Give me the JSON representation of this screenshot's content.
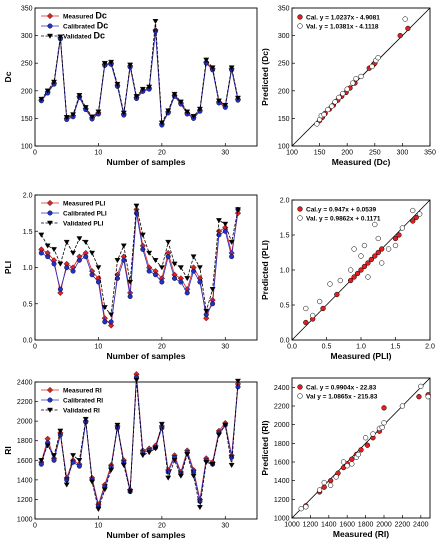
{
  "chart_data": [
    {
      "id": "dc-line",
      "type": "line",
      "xlabel": "Number of samples",
      "ylabel": "Dc",
      "xlim": [
        0,
        35
      ],
      "ylim": [
        100,
        350
      ],
      "xticks": [
        0,
        10,
        20,
        30
      ],
      "yticks": [
        100,
        150,
        200,
        250,
        300,
        350
      ],
      "legend": "top-left",
      "x": [
        1,
        2,
        3,
        4,
        5,
        6,
        7,
        8,
        9,
        10,
        11,
        12,
        13,
        14,
        15,
        16,
        17,
        18,
        19,
        20,
        21,
        22,
        23,
        24,
        25,
        26,
        27,
        28,
        29,
        30,
        31,
        32
      ],
      "series": [
        {
          "name": "Measured",
          "name_suffix": "Dc",
          "color": "#e02020",
          "marker": "diamond",
          "values": [
            183,
            198,
            214,
            296,
            150,
            155,
            190,
            168,
            151,
            160,
            248,
            250,
            210,
            158,
            245,
            188,
            201,
            205,
            310,
            140,
            162,
            192,
            178,
            160,
            152,
            165,
            252,
            240,
            180,
            172,
            240,
            185
          ]
        },
        {
          "name": "Calibrated",
          "name_suffix": "Dc",
          "color": "#2030c8",
          "marker": "circle",
          "values": [
            182,
            196,
            212,
            294,
            148,
            153,
            188,
            166,
            149,
            158,
            246,
            248,
            208,
            156,
            243,
            186,
            199,
            203,
            308,
            138,
            160,
            190,
            176,
            158,
            150,
            163,
            250,
            238,
            178,
            170,
            238,
            183
          ]
        },
        {
          "name": "Validated",
          "name_suffix": "Dc",
          "color": "#000000",
          "marker": "triangle",
          "dash": true,
          "values": [
            185,
            200,
            216,
            298,
            152,
            157,
            192,
            170,
            153,
            162,
            250,
            252,
            212,
            160,
            247,
            190,
            203,
            207,
            326,
            142,
            164,
            194,
            180,
            162,
            154,
            167,
            256,
            242,
            182,
            174,
            242,
            187
          ]
        }
      ]
    },
    {
      "id": "dc-scatter",
      "type": "scatter",
      "xlabel": "Measured (Dc)",
      "ylabel": "Predicted (Dc)",
      "xlim": [
        100,
        350
      ],
      "ylim": [
        100,
        350
      ],
      "xticks": [
        100,
        150,
        200,
        250,
        300,
        350
      ],
      "yticks": [
        100,
        150,
        200,
        250,
        300,
        350
      ],
      "legend": "top-left",
      "series": [
        {
          "name": "Cal. y = 1.0237x - 4.9081",
          "fill": "#e02020",
          "x": [
            150,
            155,
            160,
            168,
            175,
            183,
            190,
            198,
            205,
            214,
            240,
            248,
            250,
            296,
            310
          ],
          "y": [
            146,
            152,
            159,
            167,
            174,
            183,
            190,
            197,
            205,
            214,
            241,
            248,
            250,
            300,
            313
          ]
        },
        {
          "name": "Val. y = 1.0381x - 4.1118",
          "fill": "#ffffff",
          "x": [
            145,
            150,
            153,
            158,
            165,
            172,
            178,
            185,
            192,
            200,
            210,
            216,
            225,
            245,
            252,
            256,
            305
          ],
          "y": [
            140,
            148,
            155,
            157,
            166,
            172,
            180,
            188,
            195,
            203,
            214,
            222,
            226,
            244,
            255,
            260,
            330
          ]
        }
      ]
    },
    {
      "id": "pli-line",
      "type": "line",
      "xlabel": "Number of samples",
      "ylabel": "PLI",
      "xlim": [
        0,
        35
      ],
      "ylim": [
        0.0,
        2.0
      ],
      "xticks": [
        0,
        10,
        20,
        30
      ],
      "yticks": [
        0.0,
        0.5,
        1.0,
        1.5,
        2.0
      ],
      "legend": "top-left",
      "x": [
        1,
        2,
        3,
        4,
        5,
        6,
        7,
        8,
        9,
        10,
        11,
        12,
        13,
        14,
        15,
        16,
        17,
        18,
        19,
        20,
        21,
        22,
        23,
        24,
        25,
        26,
        27,
        28,
        29,
        30,
        31,
        32
      ],
      "series": [
        {
          "name": "Measured PLI",
          "color": "#e02020",
          "marker": "diamond",
          "values": [
            1.25,
            1.2,
            1.1,
            0.65,
            1.05,
            1.0,
            1.15,
            1.2,
            0.95,
            0.85,
            0.3,
            0.2,
            0.9,
            1.15,
            0.65,
            1.8,
            1.3,
            1.0,
            0.95,
            0.85,
            1.2,
            0.9,
            0.85,
            0.7,
            1.0,
            0.85,
            0.3,
            0.55,
            1.5,
            1.55,
            1.2,
            1.75
          ]
        },
        {
          "name": "Calibrated PLI",
          "color": "#2030c8",
          "marker": "circle",
          "values": [
            1.2,
            1.15,
            1.05,
            0.7,
            1.0,
            0.95,
            1.1,
            1.15,
            0.9,
            0.8,
            0.25,
            0.25,
            0.85,
            1.1,
            0.6,
            1.75,
            1.25,
            0.95,
            0.9,
            0.8,
            1.15,
            0.85,
            0.8,
            0.65,
            0.95,
            0.8,
            0.35,
            0.5,
            1.45,
            1.5,
            1.15,
            1.8
          ]
        },
        {
          "name": "Validated PLI",
          "color": "#000000",
          "marker": "triangle",
          "dash": true,
          "values": [
            1.45,
            1.3,
            1.25,
            1.05,
            1.35,
            1.2,
            1.4,
            1.35,
            1.2,
            1.0,
            0.45,
            0.35,
            1.1,
            1.3,
            0.8,
            1.85,
            1.45,
            1.2,
            1.1,
            1.0,
            1.35,
            1.05,
            1.0,
            0.85,
            1.15,
            1.0,
            0.4,
            0.7,
            1.65,
            1.6,
            1.35,
            1.8
          ]
        }
      ]
    },
    {
      "id": "pli-scatter",
      "type": "scatter",
      "xlabel": "Measured (PLI)",
      "ylabel": "Predicted (PLI)",
      "xlim": [
        0.0,
        2.0
      ],
      "ylim": [
        0.0,
        2.0
      ],
      "xticks": [
        0.0,
        0.5,
        1.0,
        1.5,
        2.0
      ],
      "yticks": [
        0.0,
        0.5,
        1.0,
        1.5,
        2.0
      ],
      "legend": "top-left",
      "series": [
        {
          "name": "Cal.y = 0.947x + 0.0539",
          "fill": "#e02020",
          "x": [
            0.2,
            0.3,
            0.45,
            0.65,
            0.85,
            0.9,
            0.95,
            1.0,
            1.05,
            1.1,
            1.15,
            1.2,
            1.25,
            1.3,
            1.5,
            1.55,
            1.75,
            1.8
          ],
          "y": [
            0.25,
            0.3,
            0.45,
            0.65,
            0.85,
            0.9,
            0.95,
            1.0,
            1.05,
            1.1,
            1.15,
            1.2,
            1.25,
            1.3,
            1.45,
            1.5,
            1.7,
            1.75
          ]
        },
        {
          "name": "Val. y = 0.9862x + 0.1171",
          "fill": "#ffffff",
          "x": [
            0.2,
            0.3,
            0.4,
            0.55,
            0.7,
            0.85,
            0.9,
            1.0,
            1.05,
            1.1,
            1.2,
            1.25,
            1.3,
            1.4,
            1.5,
            1.6,
            1.75,
            1.85
          ],
          "y": [
            0.45,
            0.35,
            0.55,
            0.8,
            0.85,
            1.0,
            1.3,
            1.2,
            1.35,
            0.9,
            1.65,
            1.45,
            1.1,
            1.3,
            1.35,
            1.6,
            1.85,
            1.8
          ]
        }
      ]
    },
    {
      "id": "ri-line",
      "type": "line",
      "xlabel": "Number of samples",
      "ylabel": "RI",
      "xlim": [
        0,
        35
      ],
      "ylim": [
        1000,
        2400
      ],
      "xticks": [
        0,
        10,
        20,
        30
      ],
      "yticks": [
        1000,
        1200,
        1400,
        1600,
        1800,
        2000,
        2200,
        2400
      ],
      "legend": "top-left",
      "x": [
        1,
        2,
        3,
        4,
        5,
        6,
        7,
        8,
        9,
        10,
        11,
        12,
        13,
        14,
        15,
        16,
        17,
        18,
        19,
        20,
        21,
        22,
        23,
        24,
        25,
        26,
        27,
        28,
        29,
        30,
        31,
        32
      ],
      "series": [
        {
          "name": "Measured RI",
          "color": "#e02020",
          "marker": "diamond",
          "values": [
            1580,
            1820,
            1620,
            1880,
            1420,
            1600,
            1560,
            2000,
            1420,
            1150,
            1350,
            1550,
            1950,
            1600,
            1300,
            2480,
            1700,
            1720,
            1750,
            1950,
            1500,
            1650,
            1480,
            1700,
            1500,
            1200,
            1620,
            1580,
            1900,
            1980,
            1650,
            2380
          ]
        },
        {
          "name": "Calibrated RI",
          "color": "#2030c8",
          "marker": "circle",
          "values": [
            1560,
            1780,
            1600,
            1860,
            1400,
            1580,
            1540,
            1990,
            1400,
            1130,
            1330,
            1530,
            1930,
            1580,
            1280,
            2450,
            1680,
            1700,
            1730,
            1930,
            1480,
            1630,
            1460,
            1680,
            1480,
            1180,
            1600,
            1560,
            1880,
            1960,
            1630,
            2350
          ]
        },
        {
          "name": "Validated RI",
          "color": "#000000",
          "marker": "triangle",
          "dash": true,
          "values": [
            1600,
            1750,
            1650,
            1900,
            1350,
            1650,
            1600,
            2020,
            1380,
            1100,
            1300,
            1500,
            1960,
            1550,
            1280,
            2420,
            1650,
            1680,
            1720,
            1970,
            1420,
            1600,
            1440,
            1660,
            1440,
            1120,
            1580,
            1560,
            1860,
            1960,
            1550,
            2410
          ]
        }
      ]
    },
    {
      "id": "ri-scatter",
      "type": "scatter",
      "xlabel": "Measured (RI)",
      "ylabel": "Predicted (RI)",
      "xlim": [
        1000,
        2500
      ],
      "ylim": [
        1000,
        2500
      ],
      "xticks": [
        1000,
        1200,
        1400,
        1600,
        1800,
        2000,
        2200,
        2400
      ],
      "yticks": [
        1000,
        1200,
        1400,
        1600,
        1800,
        2000,
        2200,
        2400
      ],
      "legend": "top-left",
      "series": [
        {
          "name": "Cal. y = 0.9904x - 22.83",
          "fill": "#e02020",
          "x": [
            1150,
            1300,
            1350,
            1420,
            1500,
            1560,
            1600,
            1650,
            1700,
            1750,
            1820,
            1880,
            1950,
            2000,
            2380,
            2480
          ],
          "y": [
            1130,
            1280,
            1330,
            1400,
            1480,
            1540,
            1580,
            1630,
            1680,
            1730,
            1780,
            1860,
            1930,
            2180,
            2300,
            2320
          ]
        },
        {
          "name": "Val  y = 1.0865x - 215.83",
          "fill": "#ffffff",
          "x": [
            1100,
            1150,
            1300,
            1350,
            1420,
            1480,
            1560,
            1600,
            1650,
            1700,
            1720,
            1800,
            1880,
            1950,
            1980,
            2000,
            2200,
            2400,
            2480
          ],
          "y": [
            1100,
            1120,
            1300,
            1380,
            1350,
            1440,
            1600,
            1560,
            1580,
            1650,
            1680,
            1860,
            1900,
            1960,
            1970,
            2020,
            2200,
            2410,
            2300
          ]
        }
      ]
    }
  ]
}
